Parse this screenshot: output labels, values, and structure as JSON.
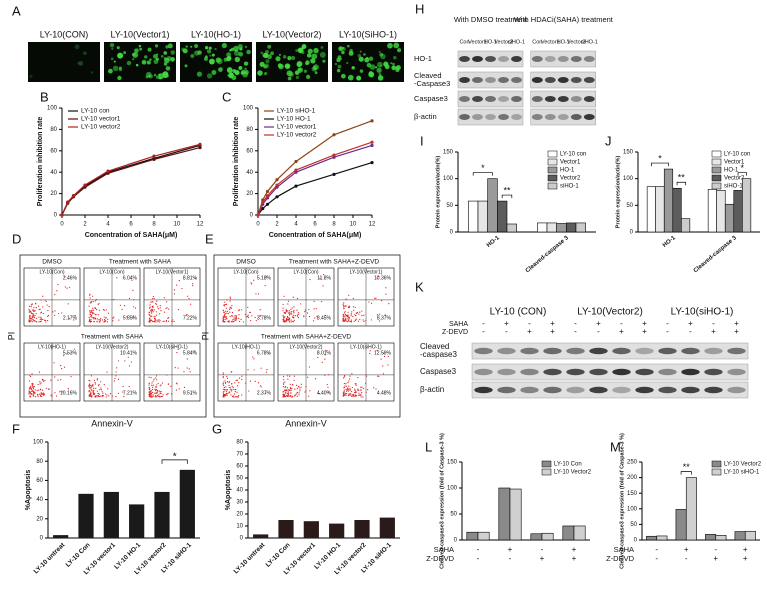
{
  "panels": [
    "A",
    "B",
    "C",
    "D",
    "E",
    "F",
    "G",
    "H",
    "I",
    "J",
    "K",
    "L",
    "M"
  ],
  "fluor": [
    "LY-10(CON)",
    "LY-10(Vector1)",
    "LY-10(HO-1)",
    "LY-10(Vector2)",
    "LY-10(SiHO-1)"
  ],
  "chart_data": [
    {
      "type": "line",
      "xlabel": "Concentration of SAHA(μM)",
      "ylabel": "Proliferation inhibition rate",
      "x": [
        0,
        0.5,
        1,
        2,
        4,
        8,
        12
      ],
      "xlim": [
        0,
        12
      ],
      "xticks": [
        0,
        2,
        4,
        6,
        8,
        10,
        12
      ],
      "ylim": [
        0,
        100
      ],
      "yticks": [
        0,
        20,
        40,
        60,
        80,
        100
      ],
      "legend": "top-left",
      "series": [
        {
          "name": "LY-10 con",
          "color": "#111111",
          "values": [
            0,
            12,
            18,
            27,
            40,
            53,
            65
          ]
        },
        {
          "name": "LY-10 vector1",
          "color": "#5a1010",
          "values": [
            0,
            11,
            17,
            26,
            39,
            52,
            63
          ]
        },
        {
          "name": "LY-10 vector2",
          "color": "#b02020",
          "values": [
            0,
            12,
            18,
            28,
            41,
            55,
            66
          ]
        }
      ]
    },
    {
      "type": "line",
      "xlabel": "Concentration of SAHA(μM)",
      "ylabel": "Proliferation inhibition rate",
      "x": [
        0,
        0.5,
        1,
        2,
        4,
        8,
        12
      ],
      "xlim": [
        0,
        12
      ],
      "xticks": [
        0,
        2,
        4,
        6,
        8,
        10,
        12
      ],
      "ylim": [
        0,
        100
      ],
      "yticks": [
        0,
        20,
        40,
        60,
        80,
        100
      ],
      "legend": "top-left",
      "series": [
        {
          "name": "LY-10 siHO-1",
          "color": "#8b4513",
          "values": [
            0,
            14,
            22,
            33,
            50,
            75,
            88
          ]
        },
        {
          "name": "LY-10 HO-1",
          "color": "#111111",
          "values": [
            0,
            6,
            10,
            17,
            27,
            38,
            49
          ]
        },
        {
          "name": "LY-10 vector1",
          "color": "#6a2a8a",
          "values": [
            0,
            10,
            16,
            26,
            40,
            54,
            65
          ]
        },
        {
          "name": "LY-10 vector2",
          "color": "#c03030",
          "values": [
            0,
            12,
            18,
            28,
            42,
            56,
            68
          ]
        }
      ]
    },
    {
      "type": "bar",
      "ylabel": "%Apoptosis",
      "categories": [
        "LY-10 untreat",
        "LY-10 Con",
        "LY-10 vector1",
        "LY-10 HO-1",
        "LY-10 vector2",
        "LY-10 siHO-1"
      ],
      "values": [
        3,
        46,
        48,
        35,
        48,
        71
      ],
      "color": "#1a1a1a",
      "ylim": [
        0,
        100
      ],
      "yticks": [
        0,
        20,
        40,
        60,
        80,
        100
      ],
      "annotations": [
        "*"
      ]
    },
    {
      "type": "bar",
      "ylabel": "%Apoptosis",
      "categories": [
        "LY-10 untreat",
        "LY-10 Con",
        "LY-10 vector1",
        "LY-10 HO-1",
        "LY-10 vector2",
        "LY-10 siHO-1"
      ],
      "values": [
        3,
        15,
        14,
        12,
        15,
        17
      ],
      "color": "#2a1a1a",
      "ylim": [
        0,
        80
      ],
      "yticks": [
        0,
        10,
        20,
        30,
        40,
        50,
        60,
        70,
        80
      ],
      "annotations": []
    },
    {
      "type": "grouped_bar",
      "ylabel": "Protein expression/actin(%)",
      "categories": [
        "HO-1",
        "Cleaved-caspase 3"
      ],
      "ylim": [
        0,
        150
      ],
      "yticks": [
        0,
        50,
        100,
        150
      ],
      "legend": "top-right",
      "annotations": [
        "*",
        "**"
      ],
      "series": [
        {
          "name": "LY-10 con",
          "color": "#ffffff",
          "values": [
            58,
            17
          ]
        },
        {
          "name": "Vector1",
          "color": "#e6e6e6",
          "values": [
            58,
            17
          ]
        },
        {
          "name": "HO-1",
          "color": "#9a9a9a",
          "values": [
            100,
            16
          ]
        },
        {
          "name": "Vector2",
          "color": "#5c5c5c",
          "values": [
            58,
            17
          ]
        },
        {
          "name": "siHO-1",
          "color": "#cccccc",
          "values": [
            15,
            17
          ]
        }
      ]
    },
    {
      "type": "grouped_bar",
      "ylabel": "Protein expression/actin(%)",
      "categories": [
        "HO-1",
        "Cleaved-caspase 3"
      ],
      "ylim": [
        0,
        150
      ],
      "yticks": [
        0,
        50,
        100,
        150
      ],
      "legend": "top-right",
      "annotations": [
        "*",
        "**",
        "*"
      ],
      "series": [
        {
          "name": "LY-10 con",
          "color": "#ffffff",
          "values": [
            85,
            80
          ]
        },
        {
          "name": "Vector1",
          "color": "#e6e6e6",
          "values": [
            85,
            78
          ]
        },
        {
          "name": "HO-1",
          "color": "#9a9a9a",
          "values": [
            118,
            52
          ]
        },
        {
          "name": "Vector2",
          "color": "#5c5c5c",
          "values": [
            82,
            78
          ]
        },
        {
          "name": "siHO-1",
          "color": "#cccccc",
          "values": [
            25,
            100
          ]
        }
      ]
    },
    {
      "type": "grouped_bar",
      "ylabel": "Cleaved-caspase3 expression (fold of Caspase-3 %)",
      "categories": [
        null,
        null,
        null,
        null
      ],
      "ylim": [
        0,
        150
      ],
      "yticks": [
        0,
        50,
        100,
        150
      ],
      "legend": "top-right",
      "annotations": [],
      "rows": [
        {
          "label": "SAHA",
          "signs": [
            "-",
            "+",
            "-",
            "+"
          ]
        },
        {
          "label": "Z-DEVD",
          "signs": [
            "-",
            "-",
            "+",
            "+"
          ]
        }
      ],
      "series": [
        {
          "name": "LY-10 Con",
          "color": "#8a8a8a",
          "values": [
            15,
            100,
            12,
            27
          ]
        },
        {
          "name": "LY-10 Vector2",
          "color": "#d0d0d0",
          "values": [
            15,
            98,
            13,
            27
          ]
        }
      ]
    },
    {
      "type": "grouped_bar",
      "ylabel": "Cleaved-caspase3 expression (fold of Caspase-3 %)",
      "categories": [
        null,
        null,
        null,
        null
      ],
      "ylim": [
        0,
        250
      ],
      "yticks": [
        0,
        50,
        100,
        150,
        200,
        250
      ],
      "legend": "top-right",
      "annotations": [
        "**"
      ],
      "rows": [
        {
          "label": "SAHA",
          "signs": [
            "-",
            "+",
            "-",
            "+"
          ]
        },
        {
          "label": "Z-DEVD",
          "signs": [
            "-",
            "-",
            "+",
            "+"
          ]
        }
      ],
      "series": [
        {
          "name": "LY-10 Vector2",
          "color": "#8a8a8a",
          "values": [
            12,
            98,
            18,
            27
          ]
        },
        {
          "name": "LY-10 siHO-1",
          "color": "#d0d0d0",
          "values": [
            13,
            200,
            15,
            28
          ]
        }
      ]
    }
  ],
  "flow": [
    {
      "top_left": "DMSO",
      "top_right": "Treatment with SAHA",
      "bottom": "Treatment with SAHA",
      "ylabel": "PI",
      "xlabel": "Annexin-V",
      "plots": [
        {
          "label": "LY-10(Con)",
          "ur": "2.46%",
          "lr": "2.17%"
        },
        {
          "label": "LY-10(Con)",
          "ur": "6.04%",
          "lr": "5.85%"
        },
        {
          "label": "LY-10(Vector1)",
          "ur": "8.81%",
          "lr": "7.22%"
        },
        {
          "label": "LY-10(HO-1)",
          "ur": "5.53%",
          "lr": "10.16%"
        },
        {
          "label": "LY-10(Vector2)",
          "ur": "10.41%",
          "lr": "7.21%"
        },
        {
          "label": "LY-10(siHO-1)",
          "ur": "5.84%",
          "lr": "9.51%"
        }
      ]
    },
    {
      "top_left": "DMSO",
      "top_right": "Treatment with SAHA+Z-DEVD",
      "bottom": "Treatment with SAHA+Z-DEVD",
      "ylabel": "PI",
      "xlabel": "Annexin-V",
      "plots": [
        {
          "label": "LY-10(Con)",
          "ur": "5.18%",
          "lr": "3.78%"
        },
        {
          "label": "LY-10(Con)",
          "ur": "11.8%",
          "lr": "8.45%"
        },
        {
          "label": "LY-10(Vector1)",
          "ur": "10.36%",
          "lr": "8.37%"
        },
        {
          "label": "LY-10(HO-1)",
          "ur": "6.78%",
          "lr": "2.37%"
        },
        {
          "label": "LY-10(Vector2)",
          "ur": "8.01%",
          "lr": "4.40%"
        },
        {
          "label": "LY-10(siHO-1)",
          "ur": "12.59%",
          "lr": "4.48%"
        }
      ]
    }
  ],
  "blot_h": {
    "groups": [
      "With  DMSO treatment",
      "With  HDACi(SAHA)  treatment"
    ],
    "lanes": [
      "Con",
      "Vector1",
      "HO-1",
      "Vector2",
      "siHO-1",
      "Con",
      "Vector1",
      "HO-1",
      "Vector2",
      "siHO-1"
    ],
    "rows": [
      {
        "label": [
          "HO-1"
        ]
      },
      {
        "label": [
          "Cleaved",
          "-Caspase3"
        ]
      },
      {
        "label": [
          "Caspase3"
        ]
      },
      {
        "label": [
          "β-actin"
        ]
      }
    ]
  },
  "blot_k": {
    "groups": [
      "LY-10 (CON)",
      "LY-10(Vector2)",
      "LY-10(siHO-1)"
    ],
    "treatments": [
      {
        "label": "SAHA",
        "signs": [
          "-",
          "+",
          "-",
          "+",
          "-",
          "+",
          "-",
          "+",
          "-",
          "+",
          "-",
          "+"
        ]
      },
      {
        "label": "Z-DEVD",
        "signs": [
          "-",
          "-",
          "+",
          "+",
          "-",
          "-",
          "+",
          "+",
          "-",
          "-",
          "+",
          "+"
        ]
      }
    ],
    "rows": [
      {
        "label": [
          "Cleaved",
          "-caspase3"
        ]
      },
      {
        "label": [
          "Caspase3"
        ]
      },
      {
        "label": [
          "β-actin"
        ]
      }
    ]
  }
}
